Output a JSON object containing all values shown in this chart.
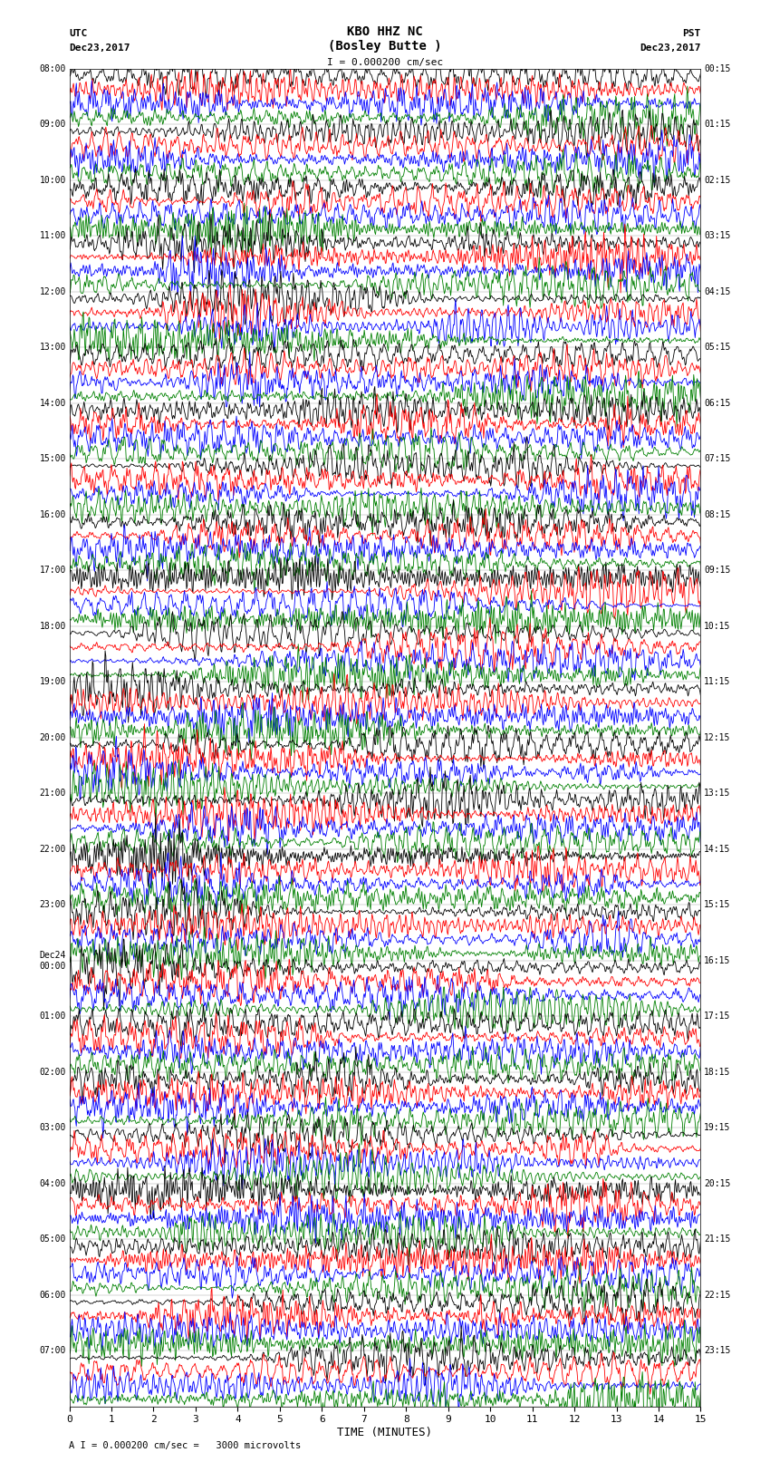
{
  "title_line1": "KBO HHZ NC",
  "title_line2": "(Bosley Butte )",
  "scale_label": "I = 0.000200 cm/sec",
  "bottom_label": "A I = 0.000200 cm/sec =   3000 microvolts",
  "xlabel": "TIME (MINUTES)",
  "left_header_line1": "UTC",
  "left_header_line2": "Dec23,2017",
  "right_header_line1": "PST",
  "right_header_line2": "Dec23,2017",
  "left_times": [
    "08:00",
    "09:00",
    "10:00",
    "11:00",
    "12:00",
    "13:00",
    "14:00",
    "15:00",
    "16:00",
    "17:00",
    "18:00",
    "19:00",
    "20:00",
    "21:00",
    "22:00",
    "23:00",
    "Dec24\n00:00",
    "01:00",
    "02:00",
    "03:00",
    "04:00",
    "05:00",
    "06:00",
    "07:00"
  ],
  "right_times": [
    "00:15",
    "01:15",
    "02:15",
    "03:15",
    "04:15",
    "05:15",
    "06:15",
    "07:15",
    "08:15",
    "09:15",
    "10:15",
    "11:15",
    "12:15",
    "13:15",
    "14:15",
    "15:15",
    "16:15",
    "17:15",
    "18:15",
    "19:15",
    "20:15",
    "21:15",
    "22:15",
    "23:15"
  ],
  "trace_colors": [
    "black",
    "red",
    "blue",
    "green"
  ],
  "n_hour_blocks": 24,
  "traces_per_block": 4,
  "n_points": 900,
  "amplitude_scale": 0.48,
  "background_color": "white",
  "plot_bg": "white",
  "xmin": 0,
  "xmax": 15,
  "xticks": [
    0,
    1,
    2,
    3,
    4,
    5,
    6,
    7,
    8,
    9,
    10,
    11,
    12,
    13,
    14,
    15
  ],
  "figsize": [
    8.5,
    16.13
  ],
  "dpi": 100,
  "linewidth": 0.6
}
